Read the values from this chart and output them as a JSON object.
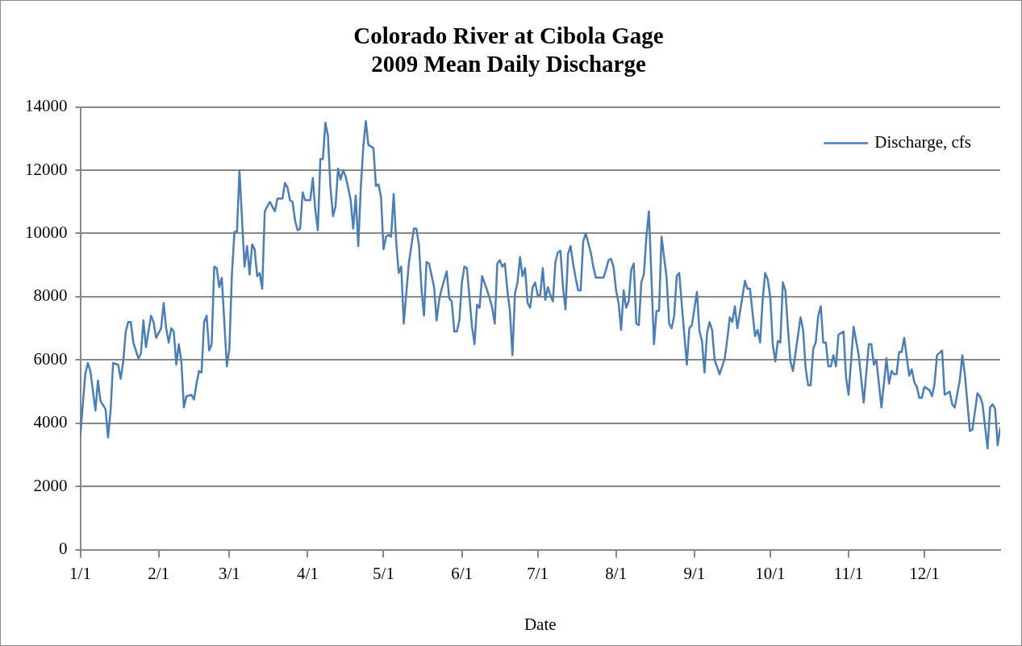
{
  "chart_data": {
    "type": "line",
    "title": "Colorado River at Cibola Gage\n2009 Mean Daily Discharge",
    "xlabel": "Date",
    "x": [
      "2009-01-01",
      "2009-01-03",
      "2009-01-04",
      "2009-01-05",
      "2009-01-07",
      "2009-01-08",
      "2009-01-09",
      "2009-01-11",
      "2009-01-12",
      "2009-01-13",
      "2009-01-14",
      "2009-01-16",
      "2009-01-17",
      "2009-01-18",
      "2009-01-19",
      "2009-01-20",
      "2009-01-21",
      "2009-01-22",
      "2009-01-24",
      "2009-01-25",
      "2009-01-26",
      "2009-01-27",
      "2009-01-29",
      "2009-01-30",
      "2009-01-31",
      "2009-02-02",
      "2009-02-03",
      "2009-02-04",
      "2009-02-05",
      "2009-02-06",
      "2009-02-07",
      "2009-02-08",
      "2009-02-09",
      "2009-02-10",
      "2009-02-11",
      "2009-02-12",
      "2009-02-14",
      "2009-02-15",
      "2009-02-16",
      "2009-02-17",
      "2009-02-18",
      "2009-02-19",
      "2009-02-20",
      "2009-02-21",
      "2009-02-22",
      "2009-02-23",
      "2009-02-24",
      "2009-02-25",
      "2009-02-26",
      "2009-02-28",
      "2009-03-01",
      "2009-03-02",
      "2009-03-03",
      "2009-03-04",
      "2009-03-05",
      "2009-03-06",
      "2009-03-07",
      "2009-03-08",
      "2009-03-09",
      "2009-03-10",
      "2009-03-11",
      "2009-03-12",
      "2009-03-13",
      "2009-03-14",
      "2009-03-15",
      "2009-03-17",
      "2009-03-19",
      "2009-03-20",
      "2009-03-22",
      "2009-03-23",
      "2009-03-24",
      "2009-03-25",
      "2009-03-26",
      "2009-03-27",
      "2009-03-28",
      "2009-03-29",
      "2009-03-30",
      "2009-03-31",
      "2009-04-02",
      "2009-04-03",
      "2009-04-04",
      "2009-04-05",
      "2009-04-06",
      "2009-04-07",
      "2009-04-08",
      "2009-04-09",
      "2009-04-10",
      "2009-04-11",
      "2009-04-12",
      "2009-04-13",
      "2009-04-14",
      "2009-04-15",
      "2009-04-16",
      "2009-04-17",
      "2009-04-18",
      "2009-04-19",
      "2009-04-20",
      "2009-04-21",
      "2009-04-22",
      "2009-04-23",
      "2009-04-24",
      "2009-04-25",
      "2009-04-27",
      "2009-04-28",
      "2009-04-29",
      "2009-04-30",
      "2009-05-01",
      "2009-05-02",
      "2009-05-03",
      "2009-05-04",
      "2009-05-05",
      "2009-05-06",
      "2009-05-07",
      "2009-05-08",
      "2009-05-09",
      "2009-05-11",
      "2009-05-13",
      "2009-05-14",
      "2009-05-15",
      "2009-05-16",
      "2009-05-17",
      "2009-05-18",
      "2009-05-19",
      "2009-05-21",
      "2009-05-22",
      "2009-05-23",
      "2009-05-24",
      "2009-05-26",
      "2009-05-27",
      "2009-05-28",
      "2009-05-29",
      "2009-05-30",
      "2009-05-31",
      "2009-06-01",
      "2009-06-02",
      "2009-06-03",
      "2009-06-05",
      "2009-06-06",
      "2009-06-07",
      "2009-06-08",
      "2009-06-09",
      "2009-06-11",
      "2009-06-12",
      "2009-06-13",
      "2009-06-14",
      "2009-06-15",
      "2009-06-16",
      "2009-06-17",
      "2009-06-18",
      "2009-06-19",
      "2009-06-20",
      "2009-06-21",
      "2009-06-22",
      "2009-06-23",
      "2009-06-24",
      "2009-06-25",
      "2009-06-26",
      "2009-06-27",
      "2009-06-28",
      "2009-06-29",
      "2009-06-30",
      "2009-07-01",
      "2009-07-02",
      "2009-07-03",
      "2009-07-04",
      "2009-07-05",
      "2009-07-06",
      "2009-07-07",
      "2009-07-08",
      "2009-07-09",
      "2009-07-10",
      "2009-07-11",
      "2009-07-12",
      "2009-07-13",
      "2009-07-14",
      "2009-07-15",
      "2009-07-16",
      "2009-07-17",
      "2009-07-18",
      "2009-07-19",
      "2009-07-20",
      "2009-07-22",
      "2009-07-23",
      "2009-07-24",
      "2009-07-27",
      "2009-07-28",
      "2009-07-29",
      "2009-07-30",
      "2009-07-31",
      "2009-08-01",
      "2009-08-02",
      "2009-08-03",
      "2009-08-04",
      "2009-08-05",
      "2009-08-06",
      "2009-08-07",
      "2009-08-08",
      "2009-08-09",
      "2009-08-10",
      "2009-08-11",
      "2009-08-12",
      "2009-08-13",
      "2009-08-14",
      "2009-08-16",
      "2009-08-17",
      "2009-08-18",
      "2009-08-19",
      "2009-08-21",
      "2009-08-22",
      "2009-08-23",
      "2009-08-24",
      "2009-08-25",
      "2009-08-26",
      "2009-08-27",
      "2009-08-29",
      "2009-08-30",
      "2009-08-31",
      "2009-09-02",
      "2009-09-03",
      "2009-09-04",
      "2009-09-05",
      "2009-09-06",
      "2009-09-07",
      "2009-09-08",
      "2009-09-09",
      "2009-09-11",
      "2009-09-13",
      "2009-09-14",
      "2009-09-15",
      "2009-09-16",
      "2009-09-17",
      "2009-09-18",
      "2009-09-21",
      "2009-09-22",
      "2009-09-23",
      "2009-09-25",
      "2009-09-26",
      "2009-09-27",
      "2009-09-28",
      "2009-09-29",
      "2009-09-30",
      "2009-10-01",
      "2009-10-02",
      "2009-10-03",
      "2009-10-04",
      "2009-10-05",
      "2009-10-06",
      "2009-10-07",
      "2009-10-08",
      "2009-10-09",
      "2009-10-10",
      "2009-10-13",
      "2009-10-14",
      "2009-10-15",
      "2009-10-16",
      "2009-10-17",
      "2009-10-18",
      "2009-10-19",
      "2009-10-20",
      "2009-10-21",
      "2009-10-22",
      "2009-10-23",
      "2009-10-24",
      "2009-10-25",
      "2009-10-26",
      "2009-10-27",
      "2009-10-28",
      "2009-10-30",
      "2009-10-31",
      "2009-11-01",
      "2009-11-03",
      "2009-11-05",
      "2009-11-07",
      "2009-11-09",
      "2009-11-10",
      "2009-11-11",
      "2009-11-12",
      "2009-11-14",
      "2009-11-16",
      "2009-11-17",
      "2009-11-18",
      "2009-11-19",
      "2009-11-20",
      "2009-11-21",
      "2009-11-22",
      "2009-11-23",
      "2009-11-25",
      "2009-11-26",
      "2009-11-27",
      "2009-11-28",
      "2009-11-29",
      "2009-11-30",
      "2009-12-01",
      "2009-12-02",
      "2009-12-03",
      "2009-12-04",
      "2009-12-05",
      "2009-12-06",
      "2009-12-08",
      "2009-12-09",
      "2009-12-11",
      "2009-12-12",
      "2009-12-13",
      "2009-12-15",
      "2009-12-16",
      "2009-12-17",
      "2009-12-19",
      "2009-12-20",
      "2009-12-22",
      "2009-12-23",
      "2009-12-24",
      "2009-12-26",
      "2009-12-27",
      "2009-12-28",
      "2009-12-29",
      "2009-12-30",
      "2009-12-31"
    ],
    "series": [
      {
        "name": "Discharge, cfs",
        "color": "#4a7ebb",
        "values": [
          3600,
          5570,
          5900,
          5650,
          4400,
          5350,
          4700,
          4450,
          3550,
          4400,
          5900,
          5850,
          5400,
          5950,
          6900,
          7200,
          7200,
          6550,
          6050,
          6200,
          7250,
          6400,
          7400,
          7200,
          6700,
          7000,
          7800,
          7000,
          6550,
          7000,
          6900,
          5850,
          6500,
          5950,
          4500,
          4850,
          4900,
          4750,
          5250,
          5650,
          5600,
          7200,
          7400,
          6300,
          6500,
          8950,
          8900,
          8300,
          8600,
          5800,
          6350,
          8700,
          10050,
          10050,
          12000,
          10450,
          8950,
          9600,
          8700,
          9650,
          9500,
          8650,
          8750,
          8250,
          10700,
          11000,
          10700,
          11100,
          11100,
          11600,
          11450,
          11050,
          11000,
          10400,
          10100,
          10150,
          11300,
          11050,
          11050,
          11750,
          10750,
          10100,
          12350,
          12350,
          13500,
          13100,
          11450,
          10550,
          10850,
          12050,
          11700,
          12000,
          11800,
          11450,
          11050,
          10150,
          11200,
          9600,
          11450,
          12750,
          13550,
          12800,
          12700,
          11500,
          11550,
          11150,
          9500,
          9900,
          9950,
          9900,
          11250,
          9750,
          8750,
          8950,
          7150,
          9050,
          10150,
          10150,
          9650,
          8250,
          7400,
          9100,
          9050,
          8300,
          7250,
          7900,
          8250,
          8800,
          7950,
          7850,
          6900,
          6900,
          7250,
          8450,
          8950,
          8900,
          7050,
          6500,
          7750,
          7650,
          8650,
          8200,
          7950,
          7650,
          7150,
          9050,
          9150,
          8950,
          9050,
          8200,
          7550,
          6150,
          8100,
          8450,
          9250,
          8650,
          8900,
          7800,
          7650,
          8300,
          8450,
          8050,
          8050,
          8900,
          7900,
          8300,
          8050,
          7850,
          9100,
          9400,
          9450,
          8300,
          7600,
          9350,
          9600,
          9050,
          8600,
          8200,
          8200,
          9750,
          10000,
          9400,
          8950,
          8600,
          8600,
          8850,
          9150,
          9200,
          8950,
          8200,
          7800,
          6950,
          8200,
          7650,
          7850,
          8850,
          9050,
          7150,
          7100,
          8450,
          8700,
          9900,
          10700,
          6500,
          7550,
          7550,
          9900,
          8600,
          7150,
          7000,
          7400,
          8650,
          8750,
          7750,
          5850,
          7000,
          7100,
          8150,
          6900,
          6600,
          5600,
          6850,
          7200,
          6950,
          6000,
          5550,
          6050,
          6650,
          7350,
          7200,
          7700,
          7000,
          8500,
          8250,
          8250,
          6750,
          6950,
          6550,
          7900,
          8750,
          8550,
          8000,
          6500,
          5950,
          6600,
          6550,
          8450,
          8200,
          7000,
          5950,
          5650,
          7350,
          6950,
          5750,
          5200,
          5200,
          6350,
          6550,
          7400,
          7700,
          6550,
          6550,
          5800,
          5800,
          6150,
          5800,
          6800,
          6900,
          5450,
          4900,
          7050,
          6150,
          4650,
          6500,
          6500,
          5850,
          6000,
          4500,
          6050,
          5250,
          5650,
          5550,
          5550,
          6250,
          6250,
          6700,
          5500,
          5700,
          5300,
          5150,
          4800,
          4800,
          5150,
          5100,
          5050,
          4850,
          5250,
          6150,
          6300,
          4900,
          5000,
          4600,
          4500,
          5350,
          6150,
          5550,
          3750,
          3800,
          4950,
          4850,
          4600,
          3200,
          4500,
          4600,
          4450,
          3300,
          3850
        ]
      }
    ],
    "xlim": [
      "2009-01-01",
      "2009-12-31"
    ],
    "xticks": [
      {
        "value": "2009-01-01",
        "label": "1/1"
      },
      {
        "value": "2009-02-01",
        "label": "2/1"
      },
      {
        "value": "2009-03-01",
        "label": "3/1"
      },
      {
        "value": "2009-04-01",
        "label": "4/1"
      },
      {
        "value": "2009-05-01",
        "label": "5/1"
      },
      {
        "value": "2009-06-01",
        "label": "6/1"
      },
      {
        "value": "2009-07-01",
        "label": "7/1"
      },
      {
        "value": "2009-08-01",
        "label": "8/1"
      },
      {
        "value": "2009-09-01",
        "label": "9/1"
      },
      {
        "value": "2009-10-01",
        "label": "10/1"
      },
      {
        "value": "2009-11-01",
        "label": "11/1"
      },
      {
        "value": "2009-12-01",
        "label": "12/1"
      }
    ],
    "ylim": [
      0,
      14000
    ],
    "yticks": [
      0,
      2000,
      4000,
      6000,
      8000,
      10000,
      12000,
      14000
    ],
    "grid": "y",
    "legend": "top right",
    "marker": "none",
    "line_style": "solid"
  }
}
